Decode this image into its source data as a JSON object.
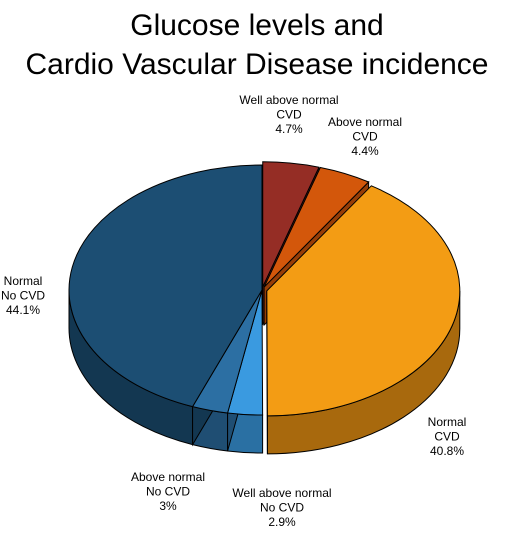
{
  "chart_data": {
    "type": "pie",
    "title_lines": [
      "Glucose levels and",
      "Cardio Vascular Disease incidence"
    ],
    "slices": [
      {
        "label_lines": [
          "Well above normal",
          "CVD",
          "4.7%"
        ],
        "value": 4.7,
        "color": "#952d25",
        "side_color": "#6a1f1a",
        "exploded": true
      },
      {
        "label_lines": [
          "Above normal",
          "CVD",
          "4.4%"
        ],
        "value": 4.4,
        "color": "#d3570b",
        "side_color": "#963d07",
        "exploded": true
      },
      {
        "label_lines": [
          "Normal",
          "CVD",
          "40.8%"
        ],
        "value": 40.8,
        "color": "#f39c14",
        "side_color": "#a8690d",
        "exploded": true
      },
      {
        "label_lines": [
          "Well above normal",
          "No CVD",
          "2.9%"
        ],
        "value": 2.9,
        "color": "#3a9ae0",
        "side_color": "#2a70a3",
        "exploded": false
      },
      {
        "label_lines": [
          "Above normal",
          "No CVD",
          "3%"
        ],
        "value": 3.0,
        "color": "#2c6fa3",
        "side_color": "#1f4e73",
        "exploded": false
      },
      {
        "label_lines": [
          "Normal",
          "No CVD",
          "44.1%"
        ],
        "value": 44.1,
        "color": "#1c4e73",
        "side_color": "#133751",
        "exploded": false
      }
    ]
  }
}
